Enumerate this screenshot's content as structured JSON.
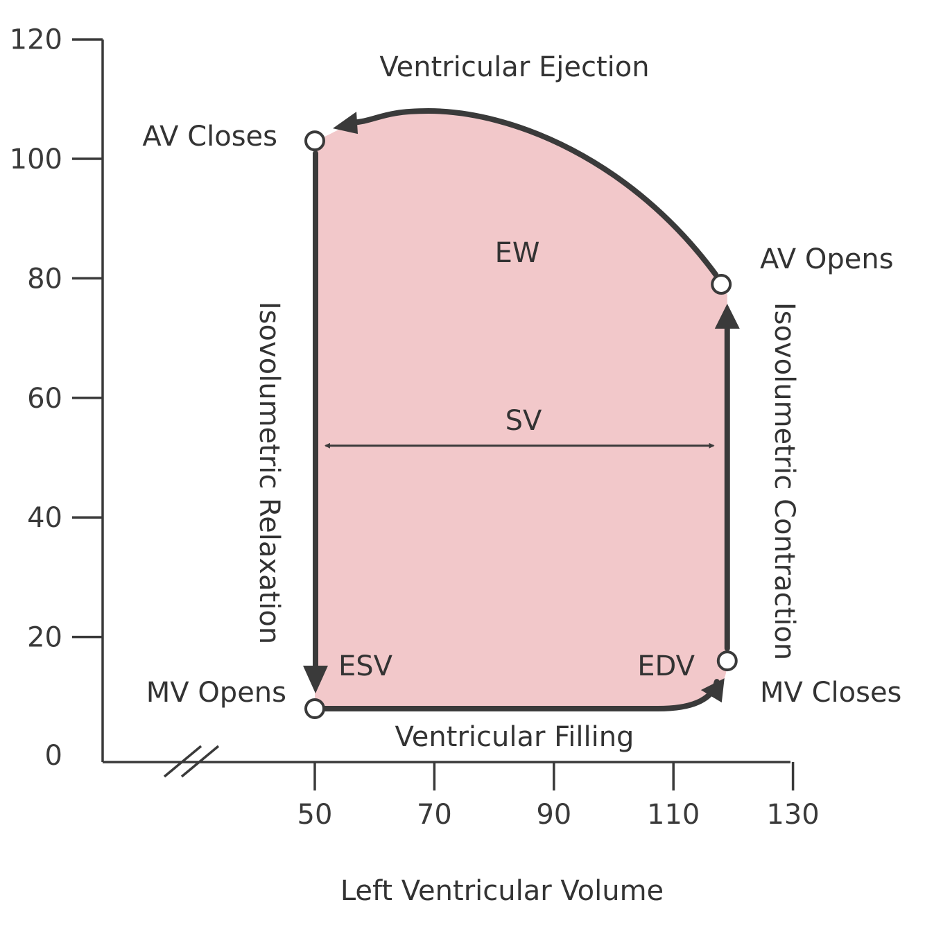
{
  "chart_data": {
    "type": "line",
    "title": "",
    "xlabel": "Left Ventricular Volume",
    "ylabel": "",
    "xlim": [
      30,
      130
    ],
    "ylim": [
      0,
      120
    ],
    "x_ticks": [
      50,
      70,
      90,
      110,
      130
    ],
    "y_ticks": [
      0,
      20,
      40,
      60,
      80,
      100,
      120
    ],
    "axis_break": "x",
    "colors": {
      "fill": "#f2c8ca",
      "line": "#3a3a3a",
      "ew": "#d9363e"
    },
    "points": [
      {
        "name": "MV Opens",
        "x": 50,
        "y": 8
      },
      {
        "name": "MV Closes",
        "x": 119,
        "y": 16
      },
      {
        "name": "AV Opens",
        "x": 118,
        "y": 79
      },
      {
        "name": "AV Closes",
        "x": 50,
        "y": 103
      }
    ],
    "ejection_peak": {
      "x": 69,
      "y": 108
    },
    "phases": {
      "filling": "Ventricular Filling",
      "contraction": "Isovolumetric Contraction",
      "ejection": "Ventricular Ejection",
      "relaxation": "Isovolumetric Relaxation"
    },
    "annotations": {
      "ew": "EW",
      "sv": "SV",
      "esv": "ESV",
      "edv": "EDV"
    }
  }
}
